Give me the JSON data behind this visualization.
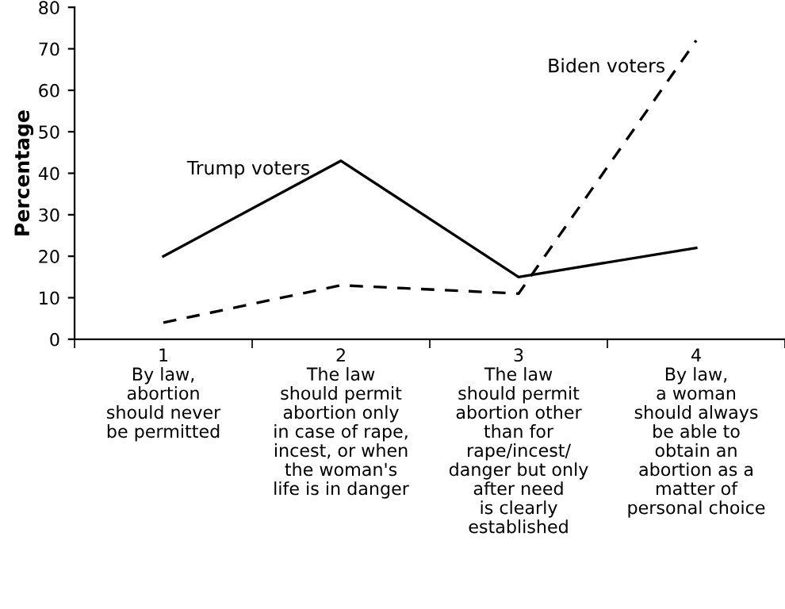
{
  "chart_data": {
    "type": "line",
    "ylabel": "Percentage",
    "ylim": [
      0,
      80
    ],
    "yticks": [
      0,
      10,
      20,
      30,
      40,
      50,
      60,
      70,
      80
    ],
    "grid": false,
    "legend": false,
    "marker": "none",
    "categories": [
      "1\nBy law,\nabortion\nshould never\nbe permitted",
      "2\nThe law\nshould permit\nabortion only\nin case of rape,\nincest, or when\nthe woman's\nlife is in danger",
      "3\nThe law\nshould permit\nabortion other\nthan for\nrape/incest/\ndanger but only\nafter need\nis clearly\nestablished",
      "4\nBy law,\na woman\nshould always\nbe able to\nobtain an\nabortion as a\nmatter of\npersonal choice"
    ],
    "series": [
      {
        "name": "Trump voters",
        "color": "#000000",
        "line_style": "solid",
        "values": [
          20,
          43,
          15,
          22
        ]
      },
      {
        "name": "Biden voters",
        "color": "#000000",
        "line_style": "dashed",
        "values": [
          4,
          13,
          11,
          72
        ]
      }
    ]
  }
}
